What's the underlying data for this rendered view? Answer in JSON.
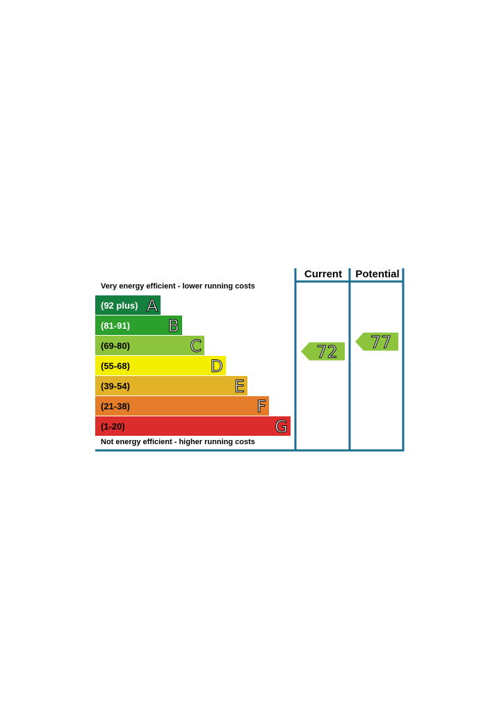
{
  "header": {
    "current_label": "Current",
    "potential_label": "Potential"
  },
  "captions": {
    "top": "Very energy efficient - lower running costs",
    "bottom": "Not energy efficient - higher running costs"
  },
  "chart_data": {
    "type": "bar",
    "categories": [
      "A",
      "B",
      "C",
      "D",
      "E",
      "F",
      "G"
    ],
    "bands": [
      {
        "letter": "A",
        "range": "(92 plus)",
        "color": "#157f3f",
        "text_color": "#ffffff"
      },
      {
        "letter": "B",
        "range": "(81-91)",
        "color": "#2ca02c",
        "text_color": "#ffffff"
      },
      {
        "letter": "C",
        "range": "(69-80)",
        "color": "#8cc43e",
        "text_color": "#000000"
      },
      {
        "letter": "D",
        "range": "(55-68)",
        "color": "#f4ee00",
        "text_color": "#000000"
      },
      {
        "letter": "E",
        "range": "(39-54)",
        "color": "#e2b228",
        "text_color": "#000000"
      },
      {
        "letter": "F",
        "range": "(21-38)",
        "color": "#e57c2a",
        "text_color": "#000000"
      },
      {
        "letter": "G",
        "range": "(1-20)",
        "color": "#dd2c2c",
        "text_color": "#000000"
      }
    ],
    "current": {
      "value": 72,
      "band": "C",
      "color": "#8cc43e"
    },
    "potential": {
      "value": 77,
      "band": "C",
      "color": "#8cc43e"
    },
    "frame_color": "#1c6e8e"
  }
}
